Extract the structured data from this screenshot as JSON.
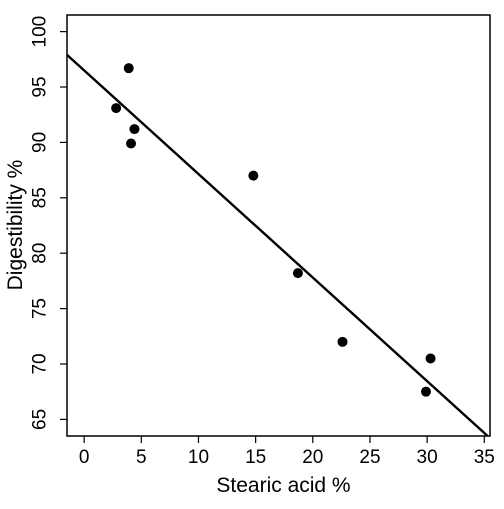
{
  "chart_data": {
    "type": "scatter",
    "title": "",
    "xlabel": "Stearic acid %",
    "ylabel": "Digestibility %",
    "xlim": [
      -1.5,
      35.5
    ],
    "ylim": [
      63.5,
      101.5
    ],
    "xticks": [
      0,
      5,
      10,
      15,
      20,
      25,
      30,
      35
    ],
    "yticks": [
      65,
      70,
      75,
      80,
      85,
      90,
      95,
      100
    ],
    "grid": false,
    "legend": "none",
    "points": [
      {
        "x": 2.8,
        "y": 93.1
      },
      {
        "x": 3.9,
        "y": 96.7
      },
      {
        "x": 4.1,
        "y": 89.9
      },
      {
        "x": 4.4,
        "y": 91.2
      },
      {
        "x": 14.8,
        "y": 87.0
      },
      {
        "x": 18.7,
        "y": 78.2
      },
      {
        "x": 22.6,
        "y": 72.0
      },
      {
        "x": 29.9,
        "y": 67.5
      },
      {
        "x": 30.3,
        "y": 70.5
      }
    ],
    "fit_line": {
      "intercept": 96.5,
      "slope": -0.935
    },
    "colors": {
      "points": "#000000",
      "line": "#000000",
      "axis": "#000000"
    }
  }
}
